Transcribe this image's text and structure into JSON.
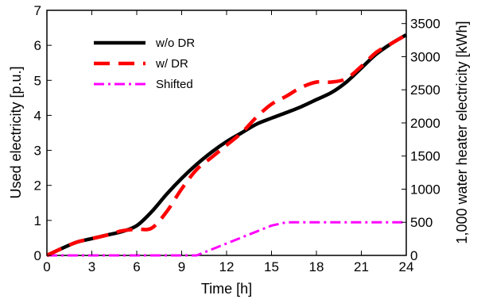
{
  "chart_data": {
    "type": "line",
    "xlabel": "Time [h]",
    "ylabel_left": "Used electricity [p.u.]",
    "ylabel_right": "1,000 water heater electricity [kWh]",
    "xlim": [
      0,
      24
    ],
    "ylim_left": [
      0,
      7
    ],
    "ylim_right": [
      0,
      3700
    ],
    "x_ticks": [
      0,
      3,
      6,
      9,
      12,
      15,
      18,
      21,
      24
    ],
    "x_tick_labels": [
      "0",
      "3",
      "6",
      "9",
      "12",
      "15",
      "18",
      "21",
      "24"
    ],
    "y_left_ticks": [
      0,
      1,
      2,
      3,
      4,
      5,
      6,
      7
    ],
    "y_left_tick_labels": [
      "0",
      "1",
      "2",
      "3",
      "4",
      "5",
      "6",
      "7"
    ],
    "y_right_ticks": [
      0,
      500,
      1000,
      1500,
      2000,
      2500,
      3000,
      3500
    ],
    "y_right_tick_labels": [
      "0",
      "500",
      "1000",
      "1500",
      "2000",
      "2500",
      "3000",
      "3500"
    ],
    "grid": false,
    "legend_position": "top-left",
    "series": [
      {
        "name": "w/o DR",
        "color": "#000000",
        "style": "solid",
        "x": [
          0,
          1,
          2,
          3,
          4,
          5,
          6,
          7,
          8,
          9,
          10,
          11,
          12,
          13,
          14,
          15,
          16,
          17,
          18,
          19,
          20,
          21,
          22,
          23,
          24
        ],
        "y": [
          0,
          0.2,
          0.38,
          0.48,
          0.58,
          0.68,
          0.85,
          1.25,
          1.75,
          2.2,
          2.6,
          2.95,
          3.25,
          3.5,
          3.75,
          3.92,
          4.08,
          4.25,
          4.45,
          4.65,
          4.95,
          5.35,
          5.75,
          6.05,
          6.3
        ]
      },
      {
        "name": "w/ DR",
        "color": "#ff0000",
        "style": "dashed",
        "x": [
          0,
          1,
          2,
          3,
          4,
          5,
          6,
          7,
          8,
          9,
          10,
          11,
          12,
          13,
          14,
          15,
          16,
          17,
          18,
          19,
          20,
          21,
          22,
          23,
          24
        ],
        "y": [
          0,
          0.2,
          0.38,
          0.48,
          0.58,
          0.7,
          0.75,
          0.78,
          1.25,
          1.9,
          2.45,
          2.8,
          3.15,
          3.5,
          3.95,
          4.32,
          4.55,
          4.8,
          4.95,
          4.95,
          5.05,
          5.4,
          5.8,
          6.05,
          6.3
        ]
      },
      {
        "name": "Shifted",
        "color": "#ff00ff",
        "style": "dashdot",
        "axis": "right",
        "x": [
          0,
          2,
          4,
          6,
          8,
          10,
          11,
          12,
          13,
          14,
          15,
          16,
          18,
          20,
          22,
          24
        ],
        "y": [
          0,
          0,
          0,
          0,
          0,
          0,
          90,
          180,
          270,
          360,
          450,
          500,
          500,
          500,
          500,
          500
        ]
      }
    ]
  }
}
